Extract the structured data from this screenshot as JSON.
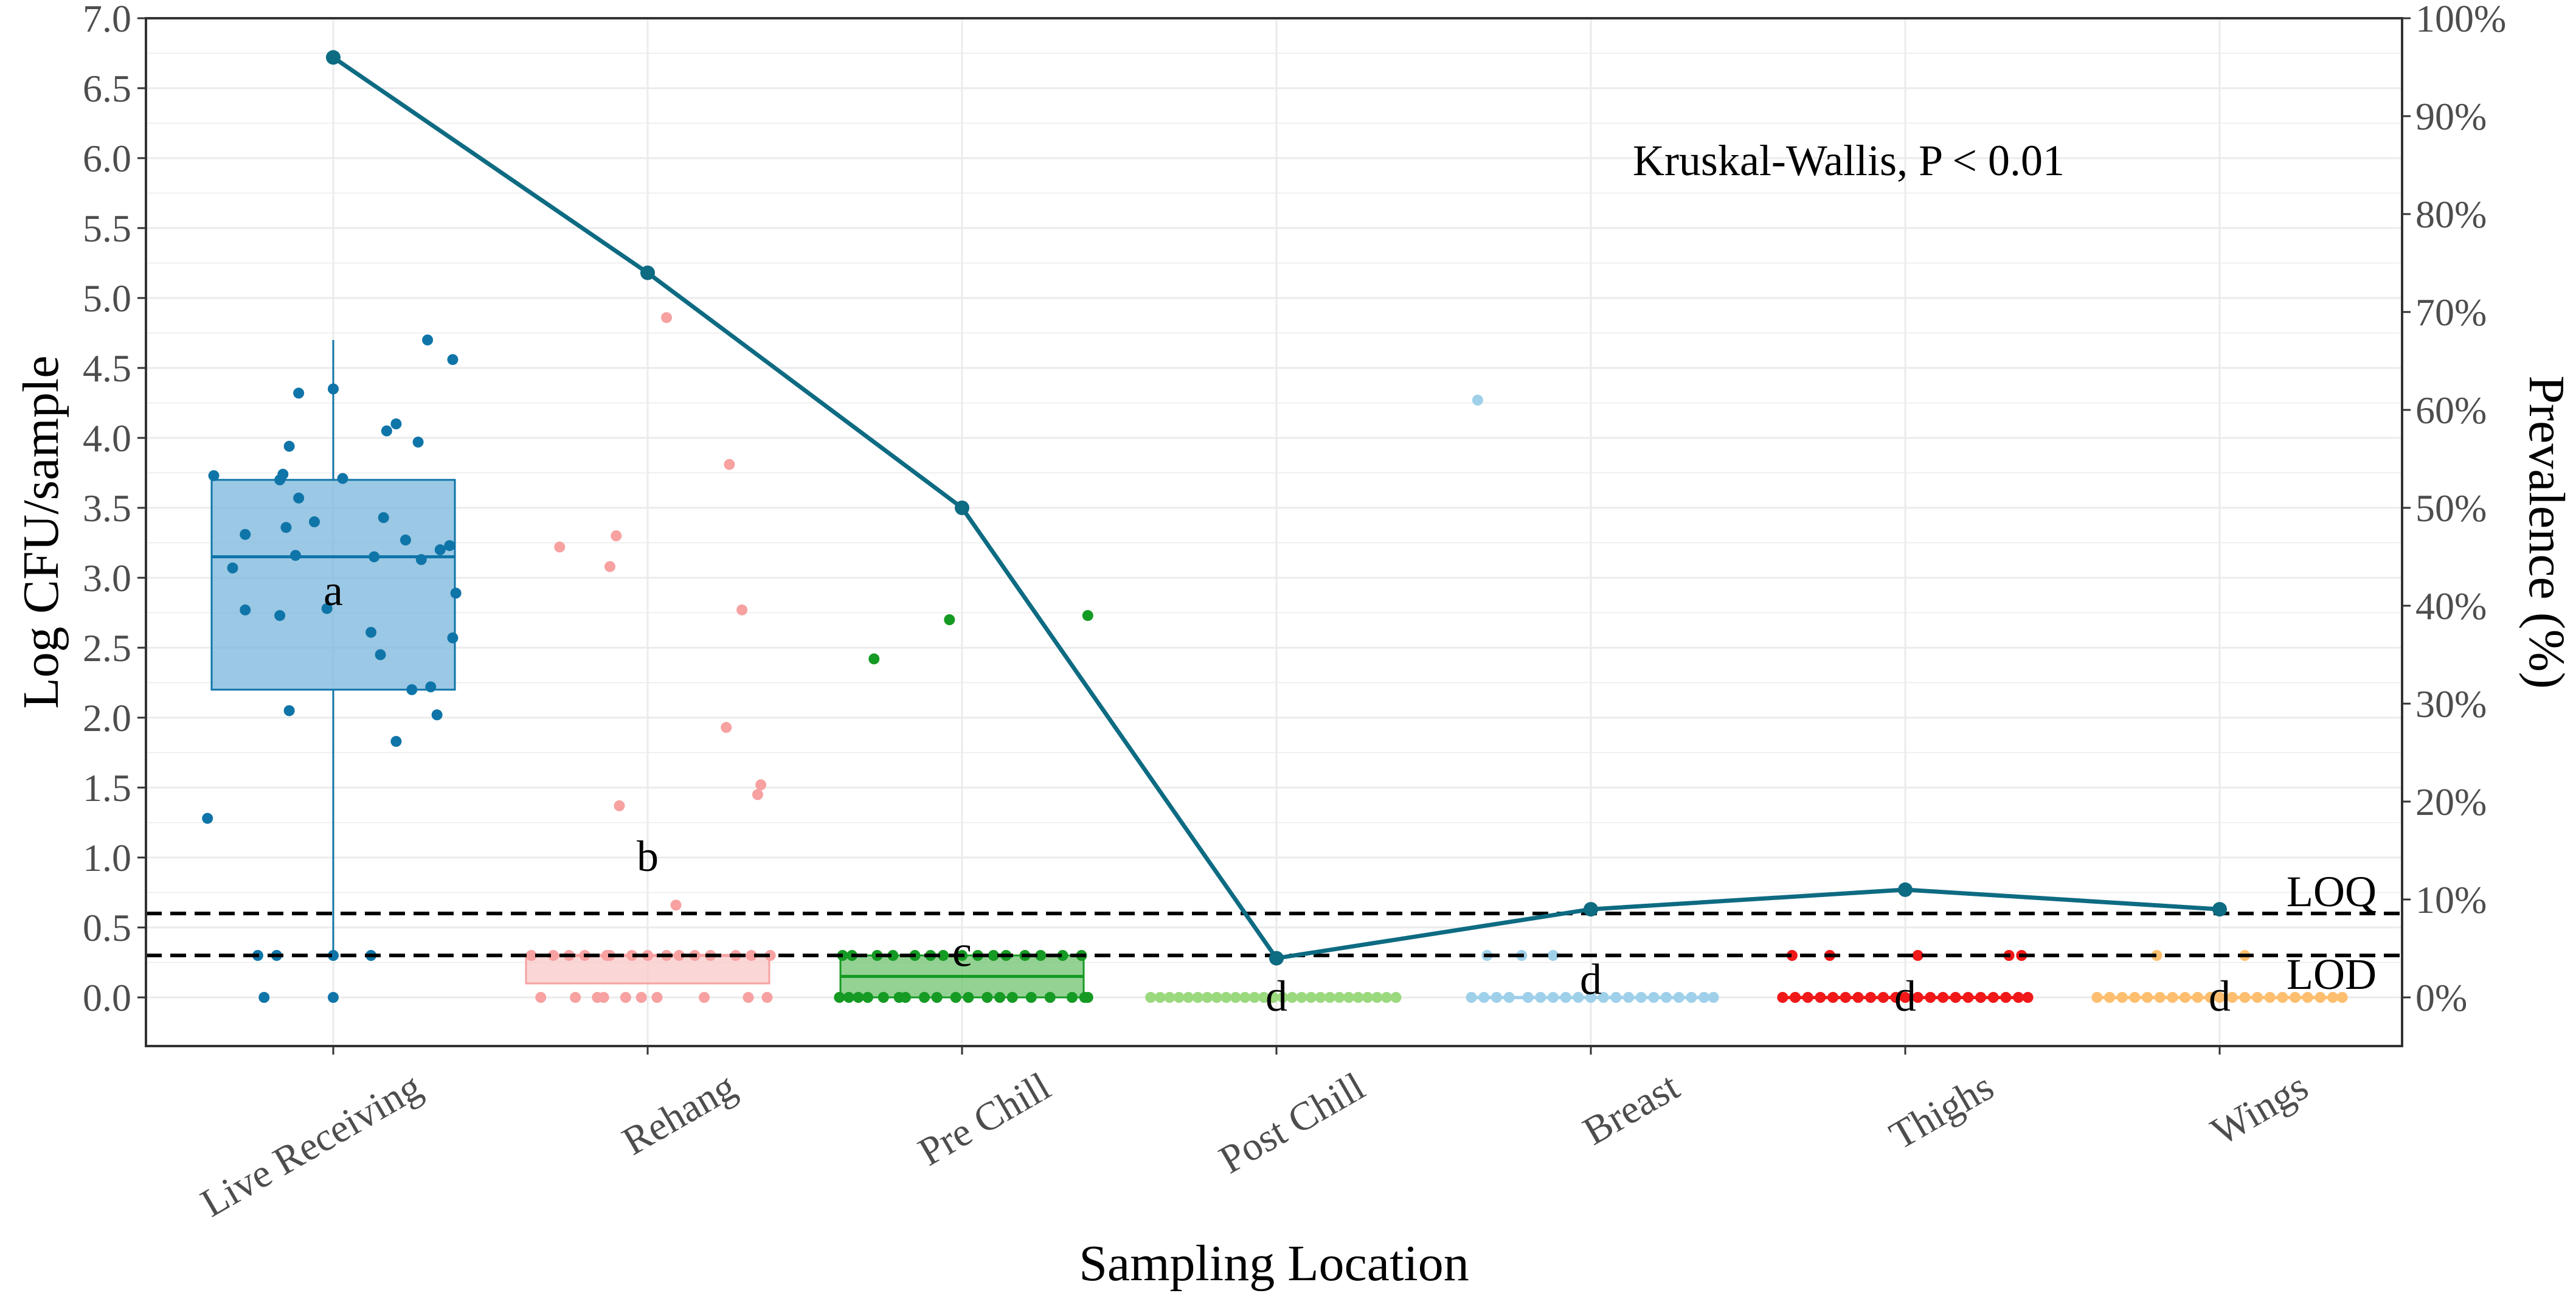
{
  "chart_data": {
    "type": "box-jitter-line",
    "title": "",
    "xlabel": "Sampling Location",
    "ylabel": "Log CFU/sample",
    "y2label": "Prevalence (%)",
    "ylim": [
      0,
      7.0
    ],
    "y_ticks": [
      "0.0",
      "0.5",
      "1.0",
      "1.5",
      "2.0",
      "2.5",
      "3.0",
      "3.5",
      "4.0",
      "4.5",
      "5.0",
      "5.5",
      "6.0",
      "6.5",
      "7.0"
    ],
    "y2lim": [
      0,
      100
    ],
    "y2_ticks": [
      "0%",
      "10%",
      "20%",
      "30%",
      "40%",
      "50%",
      "60%",
      "70%",
      "80%",
      "90%",
      "100%"
    ],
    "grid": true,
    "annotation": "Kruskal-Wallis, P < 0.01",
    "reference_lines": [
      {
        "label": "LOQ",
        "value": 0.6
      },
      {
        "label": "LOD",
        "value": 0.3
      }
    ],
    "categories": [
      "Live Receiving",
      "Rehang",
      "Pre Chill",
      "Post Chill",
      "Breast",
      "Thighs",
      "Wings"
    ],
    "colors": [
      "#0f75a8",
      "#f7a1a1",
      "#159a23",
      "#9bd97f",
      "#9fd0ea",
      "#f01818",
      "#fdbf6f"
    ],
    "box_colors": [
      "#0f75a8",
      "#f7a1a1",
      "#159a23",
      "#9bd97f",
      "#9fd0ea",
      "#f01818",
      "#fdbf6f"
    ],
    "fill_colors": [
      "#79b6dc",
      "#f9c8c8",
      "#6fc36f",
      "#c6e9b4",
      "#cbe6f4",
      "#f58a8a",
      "#fedba8"
    ],
    "letters": [
      "a",
      "b",
      "c",
      "d",
      "d",
      "d",
      "d"
    ],
    "boxes": [
      {
        "category": "Live Receiving",
        "whisker_low": 0.3,
        "q1": 2.2,
        "median": 3.15,
        "q3": 3.7,
        "whisker_high": 4.7
      },
      {
        "category": "Rehang",
        "whisker_low": 0.1,
        "q1": 0.1,
        "median": 0.3,
        "q3": 0.3,
        "whisker_high": 0.3
      },
      {
        "category": "Pre Chill",
        "whisker_low": 0.0,
        "q1": 0.0,
        "median": 0.15,
        "q3": 0.3,
        "whisker_high": 0.3
      },
      {
        "category": "Post Chill",
        "whisker_low": 0.0,
        "q1": 0.0,
        "median": 0.0,
        "q3": 0.0,
        "whisker_high": 0.0
      },
      {
        "category": "Breast",
        "whisker_low": 0.0,
        "q1": 0.0,
        "median": 0.0,
        "q3": 0.0,
        "whisker_high": 0.0
      },
      {
        "category": "Thighs",
        "whisker_low": 0.0,
        "q1": 0.0,
        "median": 0.0,
        "q3": 0.0,
        "whisker_high": 0.0
      },
      {
        "category": "Wings",
        "whisker_low": 0.0,
        "q1": 0.0,
        "median": 0.0,
        "q3": 0.0,
        "whisker_high": 0.0
      }
    ],
    "prevalence_series": {
      "values": [
        96,
        74,
        50,
        4,
        9,
        11,
        9
      ]
    },
    "points": [
      [
        [
          -0.4,
          1.28
        ],
        [
          -0.38,
          3.73
        ],
        [
          -0.32,
          3.07
        ],
        [
          -0.28,
          3.31
        ],
        [
          -0.28,
          2.77
        ],
        [
          -0.24,
          0.3
        ],
        [
          -0.22,
          0.0
        ],
        [
          -0.18,
          0.3
        ],
        [
          -0.17,
          3.7
        ],
        [
          -0.17,
          2.73
        ],
        [
          -0.16,
          3.74
        ],
        [
          -0.15,
          3.36
        ],
        [
          -0.14,
          3.94
        ],
        [
          -0.14,
          2.05
        ],
        [
          -0.12,
          3.16
        ],
        [
          -0.11,
          4.32
        ],
        [
          -0.11,
          3.57
        ],
        [
          -0.06,
          3.4
        ],
        [
          -0.02,
          2.78
        ],
        [
          0.0,
          4.35
        ],
        [
          0.0,
          0.3
        ],
        [
          0.0,
          0.0
        ],
        [
          0.03,
          3.71
        ],
        [
          0.12,
          2.61
        ],
        [
          0.13,
          3.15
        ],
        [
          0.12,
          0.3
        ],
        [
          0.15,
          2.45
        ],
        [
          0.16,
          3.43
        ],
        [
          0.17,
          4.05
        ],
        [
          0.2,
          1.83
        ],
        [
          0.2,
          4.1
        ],
        [
          0.23,
          3.27
        ],
        [
          0.25,
          2.2
        ],
        [
          0.27,
          3.97
        ],
        [
          0.28,
          3.13
        ],
        [
          0.3,
          4.7
        ],
        [
          0.31,
          2.22
        ],
        [
          0.33,
          2.02
        ],
        [
          0.34,
          3.2
        ],
        [
          0.37,
          3.23
        ],
        [
          0.38,
          2.57
        ],
        [
          0.38,
          4.56
        ],
        [
          0.39,
          2.89
        ]
      ],
      [
        [
          -0.37,
          0.3
        ],
        [
          -0.34,
          0.0
        ],
        [
          -0.3,
          0.3
        ],
        [
          -0.28,
          3.22
        ],
        [
          -0.25,
          0.3
        ],
        [
          -0.23,
          0.0
        ],
        [
          -0.2,
          0.3
        ],
        [
          -0.16,
          0.0
        ],
        [
          -0.14,
          0.0
        ],
        [
          -0.13,
          0.3
        ],
        [
          -0.12,
          3.08
        ],
        [
          -0.12,
          0.3
        ],
        [
          -0.1,
          3.3
        ],
        [
          -0.09,
          1.37
        ],
        [
          -0.07,
          0.0
        ],
        [
          -0.05,
          0.3
        ],
        [
          -0.02,
          0.0
        ],
        [
          0.0,
          0.3
        ],
        [
          0.03,
          0.0
        ],
        [
          0.06,
          0.3
        ],
        [
          0.09,
          0.66
        ],
        [
          0.1,
          0.3
        ],
        [
          0.06,
          4.86
        ],
        [
          0.15,
          0.3
        ],
        [
          0.18,
          0.0
        ],
        [
          0.2,
          0.3
        ],
        [
          0.25,
          1.93
        ],
        [
          0.26,
          3.81
        ],
        [
          0.28,
          0.3
        ],
        [
          0.3,
          2.77
        ],
        [
          0.32,
          0.0
        ],
        [
          0.33,
          0.3
        ],
        [
          0.35,
          1.45
        ],
        [
          0.36,
          1.52
        ],
        [
          0.38,
          0.0
        ],
        [
          0.39,
          0.3
        ]
      ],
      [
        [
          -0.39,
          0.0
        ],
        [
          -0.38,
          0.3
        ],
        [
          -0.36,
          0.0
        ],
        [
          -0.35,
          0.3
        ],
        [
          -0.33,
          0.0
        ],
        [
          -0.3,
          0.0
        ],
        [
          -0.28,
          2.42
        ],
        [
          -0.27,
          0.3
        ],
        [
          -0.25,
          0.0
        ],
        [
          -0.22,
          0.3
        ],
        [
          -0.2,
          0.0
        ],
        [
          -0.18,
          0.0
        ],
        [
          -0.15,
          0.3
        ],
        [
          -0.12,
          0.0
        ],
        [
          -0.1,
          0.3
        ],
        [
          -0.08,
          0.0
        ],
        [
          -0.06,
          0.3
        ],
        [
          -0.04,
          2.7
        ],
        [
          -0.02,
          0.0
        ],
        [
          0.0,
          0.3
        ],
        [
          0.02,
          0.0
        ],
        [
          0.05,
          0.3
        ],
        [
          0.08,
          0.0
        ],
        [
          0.1,
          0.3
        ],
        [
          0.12,
          0.0
        ],
        [
          0.14,
          0.3
        ],
        [
          0.16,
          0.0
        ],
        [
          0.2,
          0.3
        ],
        [
          0.22,
          0.0
        ],
        [
          0.25,
          0.3
        ],
        [
          0.28,
          0.0
        ],
        [
          0.32,
          0.3
        ],
        [
          0.35,
          0.0
        ],
        [
          0.38,
          0.3
        ],
        [
          0.39,
          0.0
        ],
        [
          0.4,
          2.73
        ],
        [
          0.4,
          0.0
        ]
      ],
      [
        [
          -0.4,
          0.0
        ],
        [
          -0.37,
          0.0
        ],
        [
          -0.34,
          0.0
        ],
        [
          -0.31,
          0.0
        ],
        [
          -0.28,
          0.0
        ],
        [
          -0.25,
          0.0
        ],
        [
          -0.22,
          0.0
        ],
        [
          -0.19,
          0.0
        ],
        [
          -0.16,
          0.0
        ],
        [
          -0.13,
          0.0
        ],
        [
          -0.1,
          0.0
        ],
        [
          -0.07,
          0.0
        ],
        [
          -0.04,
          0.0
        ],
        [
          -0.01,
          0.0
        ],
        [
          0.02,
          0.0
        ],
        [
          0.05,
          0.0
        ],
        [
          0.08,
          0.0
        ],
        [
          0.11,
          0.0
        ],
        [
          0.14,
          0.0
        ],
        [
          0.17,
          0.0
        ],
        [
          0.2,
          0.0
        ],
        [
          0.23,
          0.0
        ],
        [
          0.26,
          0.0
        ],
        [
          0.29,
          0.0
        ],
        [
          0.32,
          0.0
        ],
        [
          0.35,
          0.0
        ],
        [
          0.38,
          0.0
        ]
      ],
      [
        [
          -0.38,
          0.0
        ],
        [
          -0.34,
          0.0
        ],
        [
          -0.33,
          0.3
        ],
        [
          -0.3,
          0.0
        ],
        [
          -0.36,
          4.27
        ],
        [
          -0.26,
          0.0
        ],
        [
          -0.22,
          0.3
        ],
        [
          -0.2,
          0.0
        ],
        [
          -0.16,
          0.0
        ],
        [
          -0.12,
          0.0
        ],
        [
          -0.12,
          0.3
        ],
        [
          -0.08,
          0.0
        ],
        [
          -0.04,
          0.0
        ],
        [
          0.0,
          0.0
        ],
        [
          0.04,
          0.0
        ],
        [
          0.08,
          0.0
        ],
        [
          0.12,
          0.0
        ],
        [
          0.16,
          0.0
        ],
        [
          0.2,
          0.0
        ],
        [
          0.24,
          0.0
        ],
        [
          0.28,
          0.0
        ],
        [
          0.32,
          0.0
        ],
        [
          0.36,
          0.0
        ],
        [
          0.39,
          0.0
        ]
      ],
      [
        [
          -0.39,
          0.0
        ],
        [
          -0.36,
          0.3
        ],
        [
          -0.35,
          0.0
        ],
        [
          -0.31,
          0.0
        ],
        [
          -0.27,
          0.0
        ],
        [
          -0.24,
          0.3
        ],
        [
          -0.23,
          0.0
        ],
        [
          -0.19,
          0.0
        ],
        [
          -0.15,
          0.0
        ],
        [
          -0.11,
          0.0
        ],
        [
          -0.07,
          0.0
        ],
        [
          -0.03,
          0.0
        ],
        [
          0.0,
          0.0
        ],
        [
          0.04,
          0.0
        ],
        [
          0.04,
          0.3
        ],
        [
          0.08,
          0.0
        ],
        [
          0.12,
          0.0
        ],
        [
          0.16,
          0.0
        ],
        [
          0.2,
          0.0
        ],
        [
          0.24,
          0.0
        ],
        [
          0.28,
          0.0
        ],
        [
          0.32,
          0.0
        ],
        [
          0.33,
          0.3
        ],
        [
          0.36,
          0.0
        ],
        [
          0.37,
          0.3
        ],
        [
          0.39,
          0.0
        ]
      ],
      [
        [
          -0.39,
          0.0
        ],
        [
          -0.35,
          0.0
        ],
        [
          -0.31,
          0.0
        ],
        [
          -0.27,
          0.0
        ],
        [
          -0.23,
          0.0
        ],
        [
          -0.2,
          0.3
        ],
        [
          -0.19,
          0.0
        ],
        [
          -0.15,
          0.0
        ],
        [
          -0.11,
          0.0
        ],
        [
          -0.07,
          0.0
        ],
        [
          -0.03,
          0.0
        ],
        [
          0.0,
          0.0
        ],
        [
          0.04,
          0.0
        ],
        [
          0.08,
          0.0
        ],
        [
          0.08,
          0.3
        ],
        [
          0.12,
          0.0
        ],
        [
          0.16,
          0.0
        ],
        [
          0.2,
          0.0
        ],
        [
          0.24,
          0.0
        ],
        [
          0.28,
          0.0
        ],
        [
          0.32,
          0.0
        ],
        [
          0.36,
          0.0
        ],
        [
          0.39,
          0.0
        ]
      ]
    ],
    "line_color": "#0d6b82",
    "ref_line_color": "#000000",
    "grid_color": "#ebebeb",
    "panel_border_color": "#333333"
  }
}
